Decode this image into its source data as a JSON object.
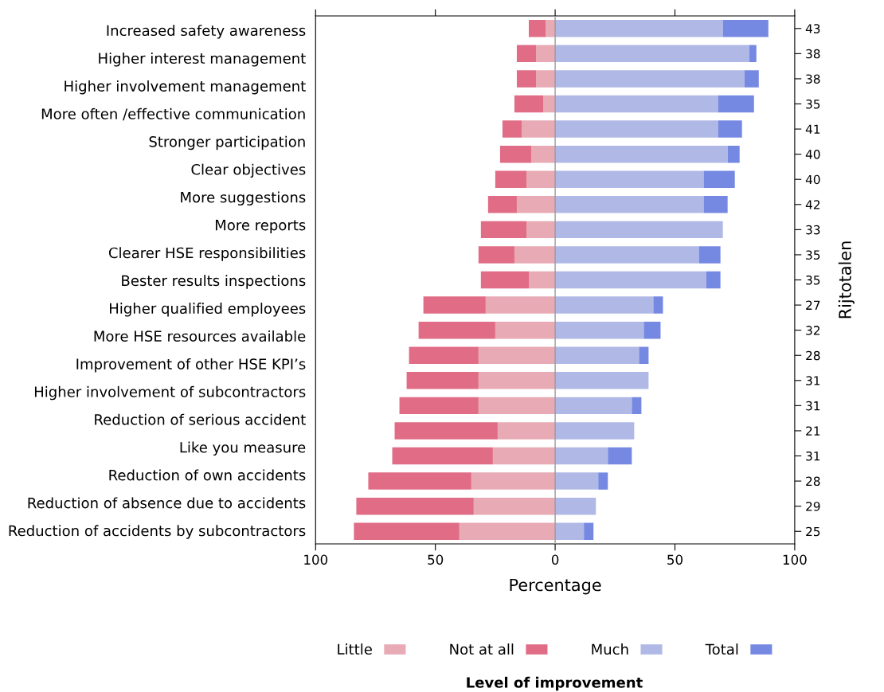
{
  "chart_data": {
    "type": "bar",
    "orientation": "horizontal",
    "stacked": true,
    "categories": [
      "43",
      "38",
      "38",
      "35",
      "41",
      "40",
      "40",
      "42",
      "33",
      "35",
      "35",
      "27",
      "32",
      "28",
      "31",
      "31",
      "21",
      "31",
      "28",
      "29",
      "25"
    ],
    "series": [
      {
        "name": "Little",
        "color": "#e8aab5",
        "values": [
          -4,
          -8,
          -8,
          -5,
          -14,
          -10,
          -12,
          -16,
          -12,
          -17,
          -11,
          -29,
          -25,
          -32,
          -32,
          -32,
          -24,
          -26,
          -35,
          -34,
          -40
        ]
      },
      {
        "name": "Not at all",
        "color": "#e06c86",
        "values": [
          -7,
          -8,
          -8,
          -12,
          -8,
          -13,
          -13,
          -12,
          -19,
          -15,
          -20,
          -26,
          -32,
          -29,
          -30,
          -33,
          -43,
          -42,
          -43,
          -49,
          -44
        ]
      },
      {
        "name": "Much",
        "color": "#b0b8e6",
        "values": [
          70,
          81,
          79,
          68,
          68,
          72,
          62,
          62,
          70,
          60,
          63,
          41,
          37,
          35,
          39,
          32,
          33,
          22,
          18,
          17,
          12
        ]
      },
      {
        "name": "Total",
        "color": "#7689e2",
        "values": [
          19,
          3,
          6,
          15,
          10,
          5,
          13,
          10,
          0,
          9,
          6,
          4,
          7,
          4,
          0,
          4,
          0,
          10,
          4,
          0,
          4
        ]
      }
    ],
    "xlabel": "Percentage",
    "y2label": "Rijtotalen",
    "legend_title": "Level of improvement",
    "legend": "bottom",
    "xlim": [
      -100,
      100
    ],
    "xticks": [
      {
        "value": -100,
        "label": "100"
      },
      {
        "value": -50,
        "label": "50"
      },
      0,
      50,
      100
    ],
    "ref_lines": [
      {
        "axis": "x",
        "value": 0,
        "color": "#999999"
      }
    ],
    "annotations": [
      "Increased safety awareness",
      "Higher interest management",
      "Higher involvement management",
      "More often /effective communication",
      "Stronger participation",
      "Clear objectives",
      "More suggestions",
      "More reports",
      "Clearer HSE responsibilities",
      "Bester results inspections",
      "Higher qualified employees",
      "More HSE resources available",
      "Improvement of other HSE KPI’s",
      "Higher involvement of subcontractors",
      "Reduction of serious accident",
      "Like you measure",
      "Reduction of own accidents",
      "Reduction of absence due to accidents",
      "Reduction of accidents by subcontractors"
    ],
    "grid": false
  }
}
